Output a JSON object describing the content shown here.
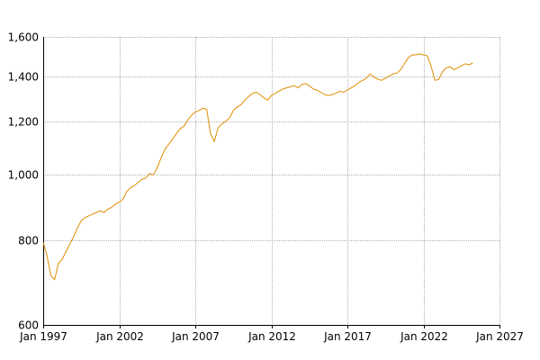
{
  "chart_data": {
    "type": "line",
    "title": "",
    "xlabel": "",
    "ylabel": "",
    "y_scale": "log",
    "ylim": [
      600,
      1600
    ],
    "xlim": [
      "1997-01",
      "2027-01"
    ],
    "grid": true,
    "y_ticks": [
      {
        "value": 600,
        "label": "600"
      },
      {
        "value": 800,
        "label": "800"
      },
      {
        "value": 1000,
        "label": "1,000"
      },
      {
        "value": 1200,
        "label": "1,200"
      },
      {
        "value": 1400,
        "label": "1,400"
      },
      {
        "value": 1600,
        "label": "1,600"
      }
    ],
    "x_ticks": [
      {
        "value": "1997-01",
        "label": "Jan 1997"
      },
      {
        "value": "2002-01",
        "label": "Jan 2002"
      },
      {
        "value": "2007-01",
        "label": "Jan 2007"
      },
      {
        "value": "2012-01",
        "label": "Jan 2012"
      },
      {
        "value": "2017-01",
        "label": "Jan 2017"
      },
      {
        "value": "2022-01",
        "label": "Jan 2022"
      },
      {
        "value": "2027-01",
        "label": "Jan 2027"
      }
    ],
    "series": [
      {
        "color": "#e08c00",
        "x": [
          "1997-01",
          "1997-04",
          "1997-07",
          "1997-10",
          "1998-01",
          "1998-04",
          "1998-07",
          "1998-10",
          "1999-01",
          "1999-04",
          "1999-07",
          "1999-10",
          "2000-01",
          "2000-04",
          "2000-07",
          "2000-10",
          "2001-01",
          "2001-04",
          "2001-07",
          "2001-10",
          "2002-01",
          "2002-04",
          "2002-07",
          "2002-10",
          "2003-01",
          "2003-04",
          "2003-07",
          "2003-10",
          "2004-01",
          "2004-04",
          "2004-07",
          "2004-10",
          "2005-01",
          "2005-04",
          "2005-07",
          "2005-10",
          "2006-01",
          "2006-04",
          "2006-07",
          "2006-10",
          "2007-01",
          "2007-04",
          "2007-07",
          "2007-10",
          "2008-01",
          "2008-04",
          "2008-07",
          "2008-10",
          "2009-01",
          "2009-04",
          "2009-07",
          "2009-10",
          "2010-01",
          "2010-04",
          "2010-07",
          "2010-10",
          "2011-01",
          "2011-04",
          "2011-07",
          "2011-10",
          "2012-01",
          "2012-04",
          "2012-07",
          "2012-10",
          "2013-01",
          "2013-04",
          "2013-07",
          "2013-10",
          "2014-01",
          "2014-04",
          "2014-07",
          "2014-10",
          "2015-01",
          "2015-04",
          "2015-07",
          "2015-10",
          "2016-01",
          "2016-04",
          "2016-07",
          "2016-10",
          "2017-01",
          "2017-04",
          "2017-07",
          "2017-10",
          "2018-01",
          "2018-04",
          "2018-07",
          "2018-10",
          "2019-01",
          "2019-04",
          "2019-07",
          "2019-10",
          "2020-01",
          "2020-04",
          "2020-07",
          "2020-10",
          "2021-01",
          "2021-04",
          "2021-07",
          "2021-10",
          "2022-01",
          "2022-04",
          "2022-07",
          "2022-10",
          "2023-01",
          "2023-04",
          "2023-07",
          "2023-10",
          "2024-01",
          "2024-04",
          "2024-07",
          "2024-10",
          "2025-01",
          "2025-04"
        ],
        "y": [
          795,
          760,
          710,
          700,
          740,
          750,
          770,
          790,
          810,
          835,
          855,
          865,
          870,
          875,
          880,
          885,
          880,
          890,
          895,
          905,
          912,
          920,
          945,
          958,
          965,
          975,
          985,
          990,
          1005,
          1000,
          1025,
          1060,
          1090,
          1110,
          1130,
          1150,
          1170,
          1180,
          1205,
          1225,
          1240,
          1245,
          1255,
          1250,
          1150,
          1120,
          1175,
          1190,
          1200,
          1215,
          1245,
          1260,
          1270,
          1290,
          1305,
          1320,
          1325,
          1315,
          1300,
          1290,
          1310,
          1320,
          1330,
          1340,
          1345,
          1350,
          1355,
          1345,
          1360,
          1365,
          1355,
          1340,
          1335,
          1325,
          1315,
          1310,
          1315,
          1320,
          1330,
          1325,
          1335,
          1345,
          1355,
          1370,
          1380,
          1390,
          1410,
          1395,
          1385,
          1380,
          1390,
          1400,
          1410,
          1415,
          1430,
          1460,
          1490,
          1505,
          1505,
          1510,
          1505,
          1500,
          1450,
          1380,
          1385,
          1420,
          1440,
          1445,
          1430,
          1440,
          1450,
          1460,
          1455,
          1465
        ]
      }
    ]
  }
}
